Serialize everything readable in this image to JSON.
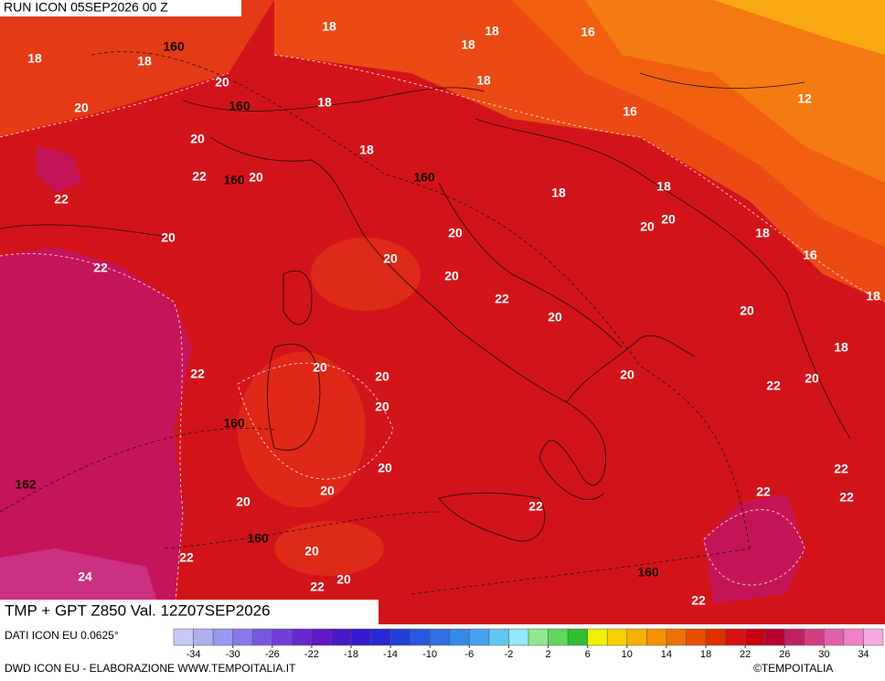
{
  "header": {
    "run": "RUN ICON 05SEP2026 00 Z",
    "field": "TMP + GPT Z850 Val. 12Z07SEP2026"
  },
  "map": {
    "labels": [
      18,
      18,
      16,
      18,
      18,
      160,
      18,
      20,
      18,
      160,
      18,
      20,
      12,
      16,
      20,
      18,
      22,
      160,
      20,
      160,
      22,
      18,
      18,
      20,
      20,
      20,
      20,
      18,
      16,
      22,
      20,
      20,
      22,
      18,
      20,
      20,
      18,
      22,
      20,
      20,
      20,
      22,
      20,
      20,
      160,
      20,
      162,
      20,
      22,
      22,
      22,
      20,
      22,
      160,
      22,
      20,
      20,
      22,
      24,
      160,
      22
    ]
  },
  "legend": {
    "source": "DATI ICON EU 0.0625°",
    "range": [
      -36,
      36
    ],
    "colors": [
      "#c8c8f8",
      "#b0b0f0",
      "#9898f0",
      "#8878e8",
      "#7858e0",
      "#7040d8",
      "#6828d0",
      "#6018c8",
      "#4818c8",
      "#3818d0",
      "#2828d8",
      "#2040d8",
      "#2858e0",
      "#3070e0",
      "#3888e8",
      "#48a0f0",
      "#60c8f0",
      "#90e8f8",
      "#90e890",
      "#60d860",
      "#30c030",
      "#f0f000",
      "#f8d000",
      "#f8b000",
      "#f89000",
      "#f07000",
      "#e85000",
      "#e03000",
      "#d81010",
      "#c80010",
      "#b80030",
      "#c02060",
      "#d04080",
      "#e060a8",
      "#f080c8",
      "#f8a8e0"
    ],
    "ticks": [
      -34,
      -30,
      -26,
      -22,
      -18,
      -14,
      -10,
      -6,
      -2,
      2,
      6,
      10,
      14,
      18,
      22,
      26,
      30,
      34
    ]
  },
  "footer": {
    "credit": "DWD ICON EU - ELABORAZIONE WWW.TEMPOITALIA.IT",
    "copyright": "©TEMPOITALIA"
  }
}
